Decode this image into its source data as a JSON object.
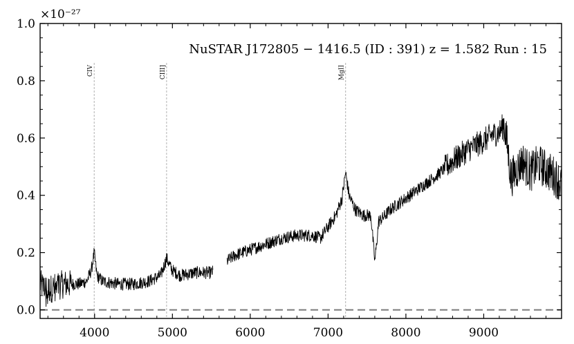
{
  "chart_data": {
    "type": "line",
    "title": "NuSTAR J172805 − 1416.5 (ID : 391)   z = 1.582   Run : 15",
    "xlabel": "",
    "ylabel": "",
    "y_scale_label": "×10⁻²⁷",
    "xlim": [
      3300,
      10000
    ],
    "ylim": [
      -0.03,
      1.0
    ],
    "x_ticks": [
      4000,
      5000,
      6000,
      7000,
      8000,
      9000
    ],
    "y_ticks": [
      0.0,
      0.2,
      0.4,
      0.6,
      0.8,
      1.0
    ],
    "x_tick_labels": [
      "4000",
      "5000",
      "6000",
      "7000",
      "8000",
      "9000"
    ],
    "y_tick_labels": [
      "0.0",
      "0.2",
      "0.4",
      "0.6",
      "0.8",
      "1.0"
    ],
    "grid": false,
    "baseline": 0.0,
    "line_color": "#000000",
    "baseline_color": "#7a7a7a",
    "marker_color": "#b0b0b0",
    "emission_lines": [
      {
        "label": "CIV",
        "x": 3995
      },
      {
        "label": "CIII]",
        "x": 4925
      },
      {
        "label": "MgII",
        "x": 7225
      }
    ],
    "spectrum_anchors": {
      "x": [
        3300,
        3400,
        3500,
        3600,
        3700,
        3800,
        3900,
        3960,
        3995,
        4030,
        4100,
        4300,
        4500,
        4700,
        4850,
        4925,
        4990,
        5100,
        5300,
        5500,
        5700,
        5800,
        6000,
        6200,
        6400,
        6600,
        6800,
        6900,
        7000,
        7100,
        7180,
        7225,
        7270,
        7350,
        7450,
        7550,
        7600,
        7620,
        7650,
        7700,
        7800,
        8000,
        8200,
        8400,
        8600,
        8800,
        9000,
        9100,
        9200,
        9260,
        9300,
        9350,
        9400,
        9500,
        9600,
        9700,
        9800,
        9900,
        10000
      ],
      "y": [
        0.09,
        0.07,
        0.08,
        0.09,
        0.09,
        0.09,
        0.1,
        0.14,
        0.2,
        0.12,
        0.1,
        0.09,
        0.09,
        0.1,
        0.12,
        0.18,
        0.14,
        0.12,
        0.13,
        0.13,
        0.17,
        0.19,
        0.21,
        0.23,
        0.25,
        0.26,
        0.26,
        0.25,
        0.29,
        0.33,
        0.39,
        0.48,
        0.4,
        0.35,
        0.33,
        0.33,
        0.17,
        0.22,
        0.31,
        0.32,
        0.35,
        0.39,
        0.43,
        0.47,
        0.52,
        0.56,
        0.59,
        0.61,
        0.62,
        0.65,
        0.58,
        0.46,
        0.48,
        0.52,
        0.48,
        0.51,
        0.49,
        0.47,
        0.44
      ],
      "gaps": [
        [
          5520,
          5700
        ]
      ]
    }
  }
}
